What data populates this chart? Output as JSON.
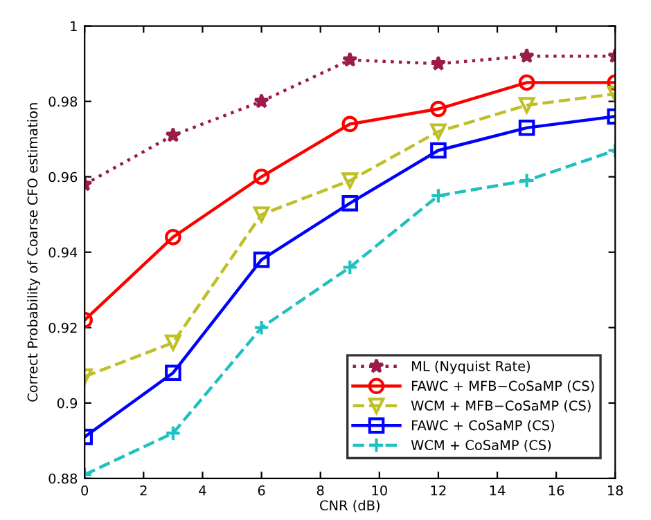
{
  "chart_data": {
    "type": "line",
    "xlabel": "CNR (dB)",
    "ylabel": "Correct Probability of Coarse CFO estimation",
    "x": [
      0,
      3,
      6,
      9,
      12,
      15,
      18
    ],
    "xlim": [
      0,
      18
    ],
    "xticks": [
      0,
      2,
      4,
      6,
      8,
      10,
      12,
      14,
      16,
      18
    ],
    "ylim": [
      0.88,
      1
    ],
    "yticks": [
      0.88,
      0.9,
      0.92,
      0.94,
      0.96,
      0.98,
      1
    ],
    "grid": false,
    "legend": "bottom right",
    "series": [
      {
        "name": "ML (Nyquist Rate)",
        "color": "#9b1c4a",
        "marker": "star",
        "line_style": "dotted",
        "values": [
          0.958,
          0.971,
          0.98,
          0.991,
          0.99,
          0.992,
          0.992
        ]
      },
      {
        "name": "FAWC + MFB−CoSaMP (CS)",
        "color": "#ff0000",
        "marker": "circle",
        "line_style": "solid",
        "values": [
          0.922,
          0.944,
          0.96,
          0.974,
          0.978,
          0.985,
          0.985
        ]
      },
      {
        "name": "WCM + MFB−CoSaMP (CS)",
        "color": "#bfbf26",
        "marker": "triangle",
        "line_style": "dashed",
        "values": [
          0.907,
          0.916,
          0.95,
          0.959,
          0.972,
          0.979,
          0.982
        ]
      },
      {
        "name": "FAWC + CoSaMP (CS)",
        "color": "#0000ff",
        "marker": "square",
        "line_style": "solid",
        "values": [
          0.891,
          0.908,
          0.938,
          0.953,
          0.967,
          0.973,
          0.976
        ]
      },
      {
        "name": "WCM + CoSaMP (CS)",
        "color": "#20c0c0",
        "marker": "cross",
        "line_style": "dashed",
        "values": [
          0.881,
          0.892,
          0.92,
          0.936,
          0.955,
          0.959,
          0.967
        ]
      }
    ]
  }
}
